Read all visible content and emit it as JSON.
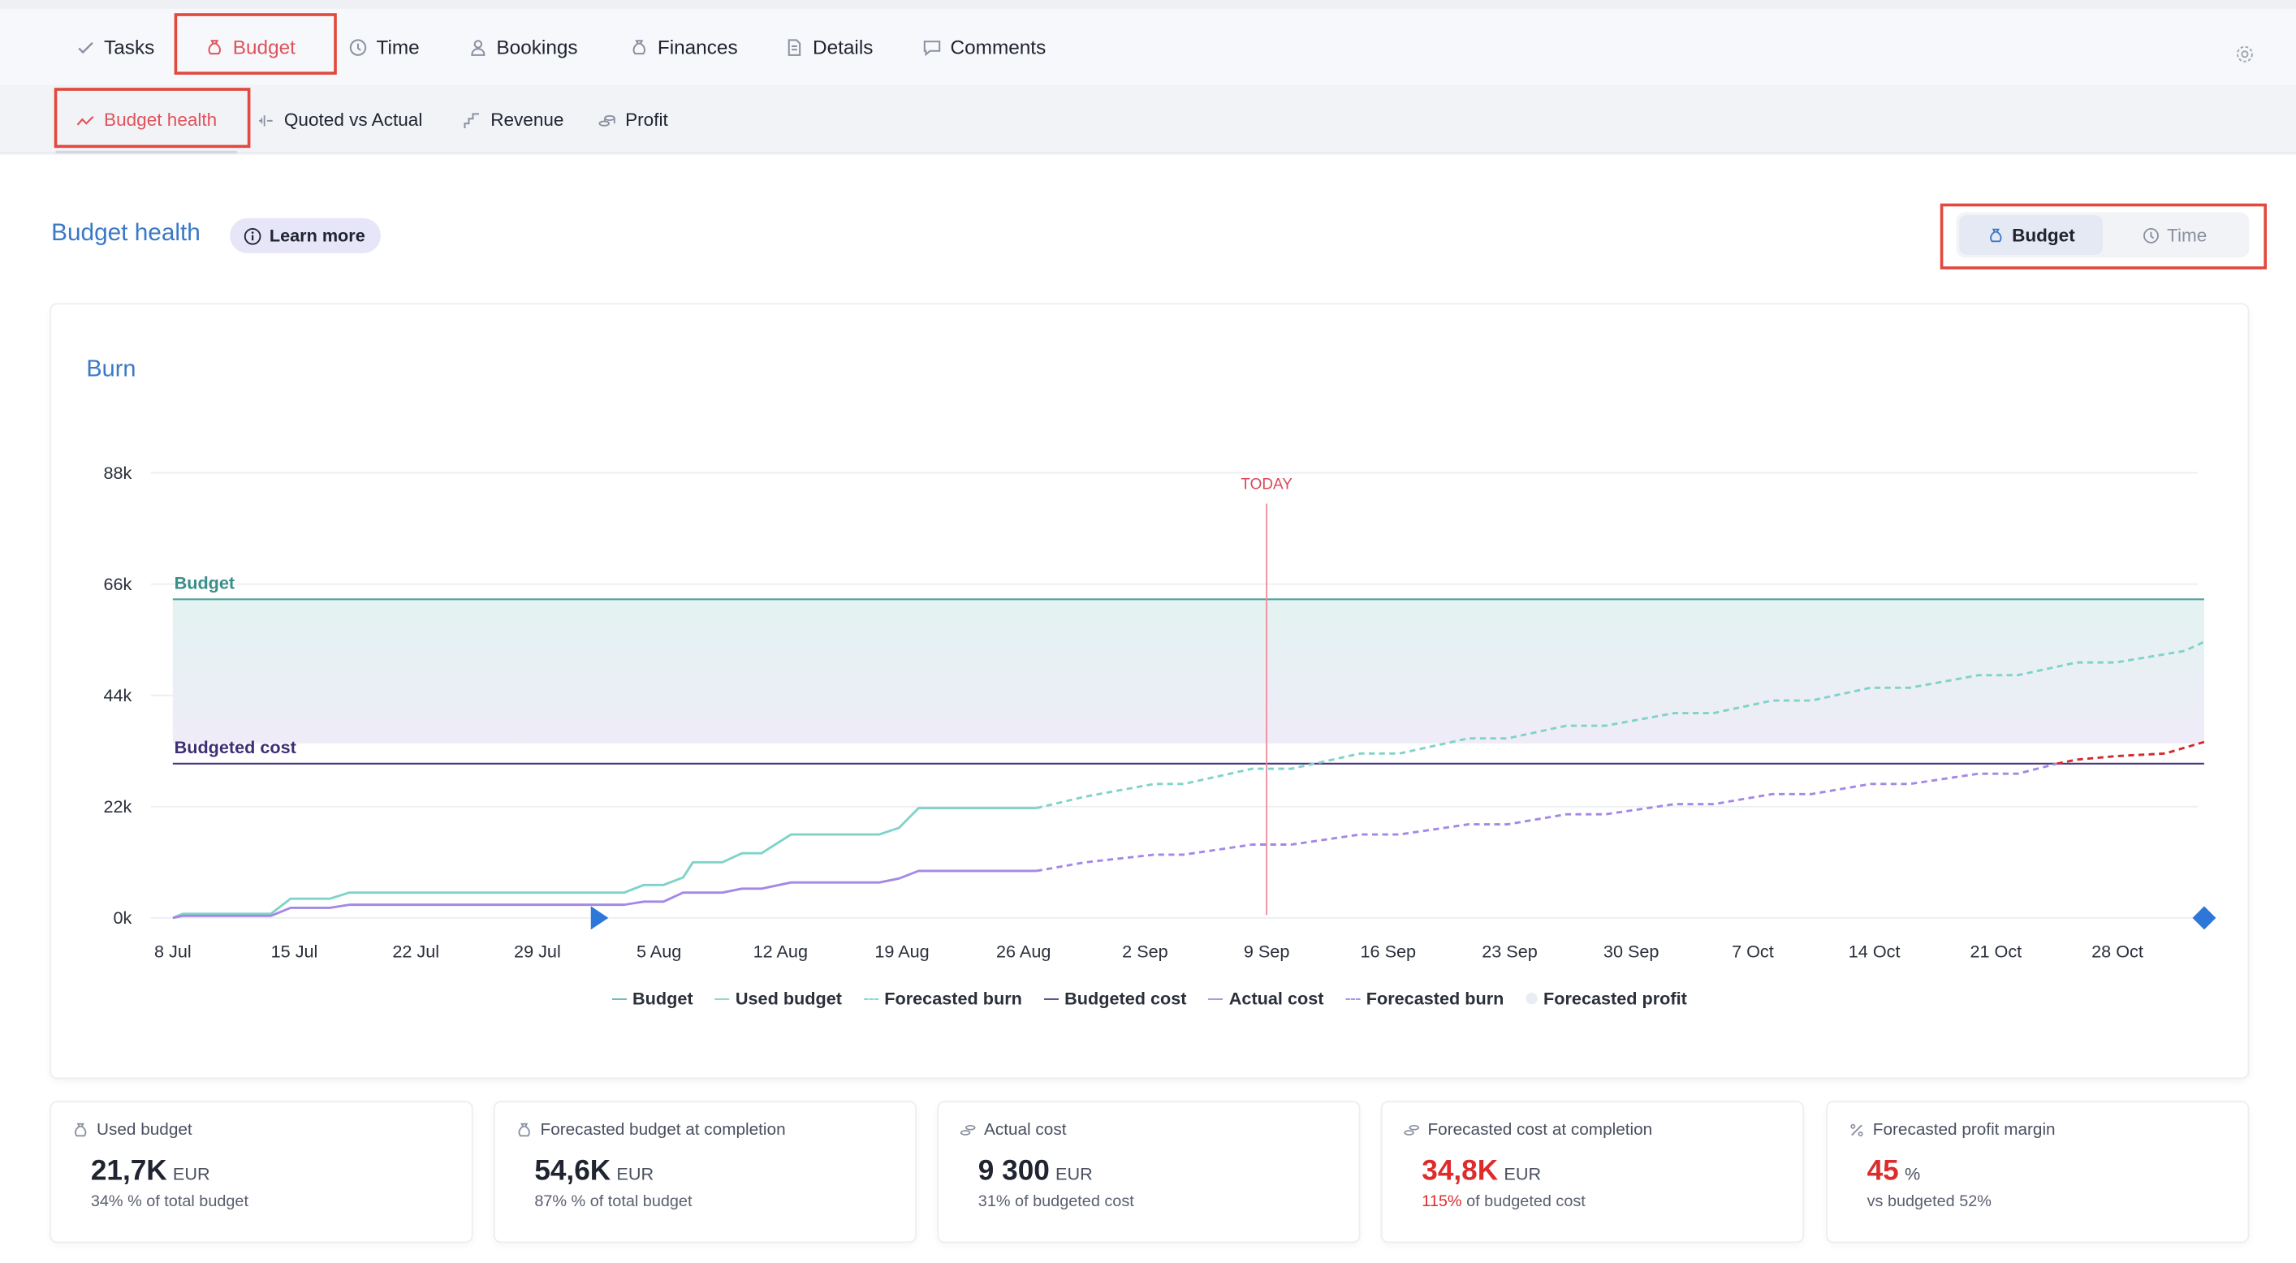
{
  "tabs": [
    {
      "label": "Tasks",
      "icon": "check-icon",
      "active": false
    },
    {
      "label": "Budget",
      "icon": "money-bag-icon",
      "active": true
    },
    {
      "label": "Time",
      "icon": "clock-icon",
      "active": false
    },
    {
      "label": "Bookings",
      "icon": "person-icon",
      "active": false
    },
    {
      "label": "Finances",
      "icon": "money-bag-icon",
      "active": false
    },
    {
      "label": "Details",
      "icon": "document-icon",
      "active": false
    },
    {
      "label": "Comments",
      "icon": "chat-icon",
      "active": false
    }
  ],
  "subtabs": [
    {
      "label": "Budget health",
      "icon": "trend-icon",
      "active": true
    },
    {
      "label": "Quoted vs Actual",
      "icon": "compare-icon",
      "active": false
    },
    {
      "label": "Revenue",
      "icon": "step-chart-icon",
      "active": false
    },
    {
      "label": "Profit",
      "icon": "coins-icon",
      "active": false
    }
  ],
  "section": {
    "title": "Budget health",
    "learn_more": "Learn more"
  },
  "toggle": {
    "budget": "Budget",
    "time": "Time",
    "selected": "Budget"
  },
  "chart_title": "Burn",
  "chart_data": {
    "type": "line",
    "x_ticks": [
      "8 Jul",
      "15 Jul",
      "22 Jul",
      "29 Jul",
      "5 Aug",
      "12 Aug",
      "19 Aug",
      "26 Aug",
      "2 Sep",
      "9 Sep",
      "16 Sep",
      "23 Sep",
      "30 Sep",
      "7 Oct",
      "14 Oct",
      "21 Oct",
      "28 Oct"
    ],
    "y_ticks": [
      "0k",
      "22k",
      "44k",
      "66k",
      "88k"
    ],
    "ylim": [
      0,
      88000
    ],
    "today_label": "TODAY",
    "today_day": 63,
    "end_day": 117,
    "budget": 63000,
    "budget_label": "Budget",
    "budgeted_cost": 30500,
    "budgeted_cost_label": "Budgeted cost",
    "used_budget": [
      [
        0,
        0
      ],
      [
        1,
        800
      ],
      [
        10,
        800
      ],
      [
        12,
        3800
      ],
      [
        16,
        3800
      ],
      [
        18,
        5000
      ],
      [
        46,
        5000
      ],
      [
        48,
        6500
      ],
      [
        50,
        6500
      ],
      [
        52,
        8000
      ],
      [
        53,
        11000
      ],
      [
        56,
        11000
      ],
      [
        58,
        12800
      ],
      [
        60,
        12800
      ],
      [
        63,
        16500
      ],
      [
        72,
        16500
      ],
      [
        74,
        17800
      ],
      [
        76,
        21700
      ],
      [
        88,
        21700
      ]
    ],
    "forecasted_burn_budget": [
      [
        88,
        21700
      ],
      [
        93,
        24000
      ],
      [
        100,
        26500
      ],
      [
        103,
        26500
      ],
      [
        110,
        29500
      ],
      [
        114,
        29500
      ],
      [
        121,
        32500
      ],
      [
        125,
        32500
      ],
      [
        132,
        35500
      ],
      [
        136,
        35500
      ],
      [
        142,
        38000
      ],
      [
        146,
        38000
      ],
      [
        153,
        40500
      ],
      [
        157,
        40500
      ],
      [
        163,
        43000
      ],
      [
        167,
        43000
      ],
      [
        173,
        45500
      ],
      [
        177,
        45500
      ],
      [
        184,
        48000
      ],
      [
        188,
        48000
      ],
      [
        194,
        50500
      ],
      [
        198,
        50500
      ],
      [
        205,
        52800
      ],
      [
        207,
        54600
      ]
    ],
    "actual_cost": [
      [
        0,
        0
      ],
      [
        1,
        400
      ],
      [
        10,
        400
      ],
      [
        12,
        2000
      ],
      [
        16,
        2000
      ],
      [
        18,
        2600
      ],
      [
        46,
        2600
      ],
      [
        48,
        3200
      ],
      [
        50,
        3200
      ],
      [
        52,
        5000
      ],
      [
        56,
        5000
      ],
      [
        58,
        5800
      ],
      [
        60,
        5800
      ],
      [
        63,
        7000
      ],
      [
        72,
        7000
      ],
      [
        74,
        7800
      ],
      [
        76,
        9300
      ],
      [
        88,
        9300
      ]
    ],
    "forecasted_burn_cost": [
      [
        88,
        9300
      ],
      [
        93,
        11000
      ],
      [
        100,
        12500
      ],
      [
        103,
        12500
      ],
      [
        110,
        14500
      ],
      [
        114,
        14500
      ],
      [
        121,
        16500
      ],
      [
        125,
        16500
      ],
      [
        132,
        18500
      ],
      [
        136,
        18500
      ],
      [
        142,
        20500
      ],
      [
        146,
        20500
      ],
      [
        153,
        22500
      ],
      [
        157,
        22500
      ],
      [
        163,
        24500
      ],
      [
        167,
        24500
      ],
      [
        173,
        26500
      ],
      [
        177,
        26500
      ],
      [
        184,
        28500
      ],
      [
        188,
        28500
      ],
      [
        192,
        30500
      ],
      [
        194,
        31300
      ],
      [
        198,
        32000
      ],
      [
        203,
        32500
      ],
      [
        207,
        34800
      ]
    ],
    "overrun_from": 192,
    "legend": [
      {
        "name": "Budget",
        "color": "#5fb3ad",
        "style": "solid"
      },
      {
        "name": "Used budget",
        "color": "#7fd3c9",
        "style": "solid"
      },
      {
        "name": "Forecasted burn",
        "color": "#7fd3c9",
        "style": "dashed"
      },
      {
        "name": "Budgeted cost",
        "color": "#4a3880",
        "style": "solid"
      },
      {
        "name": "Actual cost",
        "color": "#a488e6",
        "style": "solid"
      },
      {
        "name": "Forecasted burn",
        "color": "#a488e6",
        "style": "dashed"
      },
      {
        "name": "Forecasted profit",
        "color": "#e8edf4",
        "style": "dot"
      }
    ],
    "colors": {
      "budget": "#4fa39c",
      "used": "#7fd3c9",
      "budgeted_cost": "#4a3880",
      "actual": "#a488e6",
      "overrun": "#d42a2a",
      "today": "#f08a9a",
      "marker": "#2e76d8"
    }
  },
  "kpis": [
    {
      "title": "Used budget",
      "icon": "money-bag-icon",
      "value": "21,7K",
      "unit": "EUR",
      "red": false,
      "sub_pct": "34%",
      "sub_text": " % of total budget",
      "sub_red": false
    },
    {
      "title": "Forecasted budget at completion",
      "icon": "money-bag-icon",
      "value": "54,6K",
      "unit": "EUR",
      "red": false,
      "sub_pct": "87%",
      "sub_text": " % of total budget",
      "sub_red": false
    },
    {
      "title": "Actual cost",
      "icon": "coins-icon",
      "value": "9 300",
      "unit": "EUR",
      "red": false,
      "sub_pct": "31%",
      "sub_text": " of budgeted cost",
      "sub_red": false
    },
    {
      "title": "Forecasted cost at completion",
      "icon": "coins-icon",
      "value": "34,8K",
      "unit": "EUR",
      "red": true,
      "sub_pct": "115%",
      "sub_text": " of budgeted cost",
      "sub_red": true
    },
    {
      "title": "Forecasted profit margin",
      "icon": "percent-icon",
      "value": "45",
      "unit": "%",
      "red": true,
      "sub_pct": "",
      "sub_text": "vs budgeted 52%",
      "sub_red": false
    }
  ]
}
